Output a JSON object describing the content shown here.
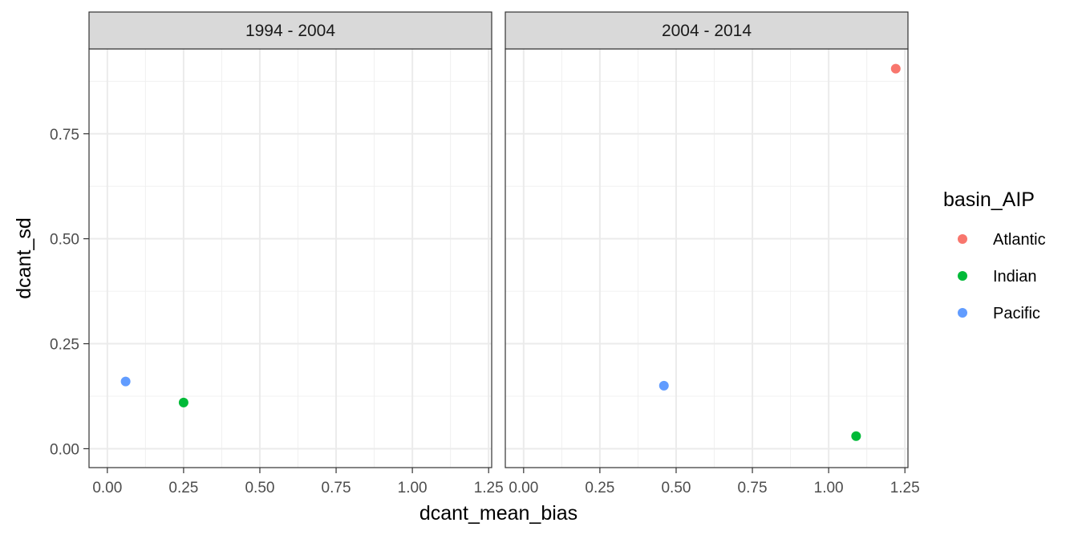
{
  "chart_data": {
    "type": "scatter",
    "xlabel": "dcant_mean_bias",
    "ylabel": "dcant_sd",
    "xlim": [
      -0.06,
      1.26
    ],
    "ylim": [
      -0.045,
      0.952
    ],
    "x_ticks": [
      0.0,
      0.25,
      0.5,
      0.75,
      1.0,
      1.25
    ],
    "x_tick_labels": [
      "0.00",
      "0.25",
      "0.50",
      "0.75",
      "1.00",
      "1.25"
    ],
    "y_ticks": [
      0.0,
      0.25,
      0.5,
      0.75
    ],
    "y_tick_labels": [
      "0.00",
      "0.25",
      "0.50",
      "0.75"
    ],
    "grid": true,
    "legend": {
      "title": "basin_AIP",
      "placement": "right",
      "entries": [
        {
          "label": "Atlantic",
          "color": "#F8766D"
        },
        {
          "label": "Indian",
          "color": "#00BA38"
        },
        {
          "label": "Pacific",
          "color": "#619CFF"
        }
      ]
    },
    "panels": [
      {
        "title": "1994 - 2004",
        "points": [
          {
            "series": "Pacific",
            "x": 0.06,
            "y": 0.16
          },
          {
            "series": "Indian",
            "x": 0.25,
            "y": 0.11
          }
        ]
      },
      {
        "title": "2004 - 2014",
        "points": [
          {
            "series": "Atlantic",
            "x": 1.22,
            "y": 0.905
          },
          {
            "series": "Pacific",
            "x": 0.46,
            "y": 0.15
          },
          {
            "series": "Indian",
            "x": 1.09,
            "y": 0.03
          }
        ]
      }
    ]
  }
}
